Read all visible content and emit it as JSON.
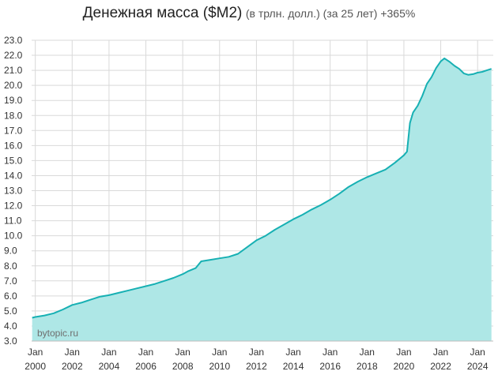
{
  "title": {
    "main": "Денежная масса ($M2)",
    "sub": "(в трлн. долл.) (за 25 лет) +365%"
  },
  "watermark": "bytopic.ru",
  "colors": {
    "line": "#17b0b3",
    "fill": "#aee7e6",
    "grid": "#d9d9d9"
  },
  "chart_data": {
    "type": "area",
    "title": "Денежная масса ($M2) (в трлн. долл.) (за 25 лет) +365%",
    "xlabel": "",
    "ylabel": "",
    "ylim": [
      3.0,
      23.0
    ],
    "yticks": [
      "23.0",
      "22.0",
      "21.0",
      "20.0",
      "19.0",
      "18.0",
      "17.0",
      "16.0",
      "15.0",
      "14.0",
      "13.0",
      "12.0",
      "11.0",
      "10.0",
      "9.0",
      "8.0",
      "7.0",
      "6.0",
      "5.0",
      "4.0",
      "3.0"
    ],
    "xlim": [
      1999.8,
      2024.85
    ],
    "xticks": [
      {
        "year": 2000,
        "line1": "Jan",
        "line2": "2000"
      },
      {
        "year": 2002,
        "line1": "Jan",
        "line2": "2002"
      },
      {
        "year": 2004,
        "line1": "Jan",
        "line2": "2004"
      },
      {
        "year": 2006,
        "line1": "Jan",
        "line2": "2006"
      },
      {
        "year": 2008,
        "line1": "Jan",
        "line2": "2008"
      },
      {
        "year": 2010,
        "line1": "Jan",
        "line2": "2010"
      },
      {
        "year": 2012,
        "line1": "Jan",
        "line2": "2012"
      },
      {
        "year": 2014,
        "line1": "Jan",
        "line2": "2014"
      },
      {
        "year": 2016,
        "line1": "Jan",
        "line2": "2016"
      },
      {
        "year": 2018,
        "line1": "Jan",
        "line2": "2018"
      },
      {
        "year": 2020,
        "line1": "Jan",
        "line2": "2020"
      },
      {
        "year": 2022,
        "line1": "Jan",
        "line2": "2022"
      },
      {
        "year": 2024,
        "line1": "Jan",
        "line2": "2024"
      }
    ],
    "grid": true,
    "series": [
      {
        "points": [
          [
            1999.83,
            4.55
          ],
          [
            2000.0,
            4.6
          ],
          [
            2000.5,
            4.7
          ],
          [
            2001.0,
            4.85
          ],
          [
            2001.5,
            5.1
          ],
          [
            2002.0,
            5.4
          ],
          [
            2002.5,
            5.55
          ],
          [
            2003.0,
            5.75
          ],
          [
            2003.5,
            5.95
          ],
          [
            2004.0,
            6.05
          ],
          [
            2004.5,
            6.2
          ],
          [
            2005.0,
            6.35
          ],
          [
            2005.5,
            6.5
          ],
          [
            2006.0,
            6.65
          ],
          [
            2006.5,
            6.8
          ],
          [
            2007.0,
            7.0
          ],
          [
            2007.5,
            7.2
          ],
          [
            2008.0,
            7.45
          ],
          [
            2008.3,
            7.65
          ],
          [
            2008.7,
            7.85
          ],
          [
            2009.0,
            8.3
          ],
          [
            2009.5,
            8.4
          ],
          [
            2010.0,
            8.5
          ],
          [
            2010.5,
            8.6
          ],
          [
            2011.0,
            8.8
          ],
          [
            2011.5,
            9.25
          ],
          [
            2012.0,
            9.7
          ],
          [
            2012.5,
            10.0
          ],
          [
            2013.0,
            10.4
          ],
          [
            2013.5,
            10.75
          ],
          [
            2014.0,
            11.1
          ],
          [
            2014.5,
            11.4
          ],
          [
            2015.0,
            11.75
          ],
          [
            2015.5,
            12.05
          ],
          [
            2016.0,
            12.4
          ],
          [
            2016.5,
            12.8
          ],
          [
            2017.0,
            13.25
          ],
          [
            2017.5,
            13.6
          ],
          [
            2018.0,
            13.9
          ],
          [
            2018.5,
            14.15
          ],
          [
            2019.0,
            14.4
          ],
          [
            2019.5,
            14.85
          ],
          [
            2020.0,
            15.35
          ],
          [
            2020.17,
            15.6
          ],
          [
            2020.33,
            17.5
          ],
          [
            2020.5,
            18.2
          ],
          [
            2020.75,
            18.65
          ],
          [
            2021.0,
            19.3
          ],
          [
            2021.25,
            20.1
          ],
          [
            2021.5,
            20.55
          ],
          [
            2021.75,
            21.15
          ],
          [
            2022.0,
            21.6
          ],
          [
            2022.2,
            21.8
          ],
          [
            2022.5,
            21.55
          ],
          [
            2022.75,
            21.3
          ],
          [
            2023.0,
            21.1
          ],
          [
            2023.25,
            20.8
          ],
          [
            2023.5,
            20.7
          ],
          [
            2023.75,
            20.75
          ],
          [
            2024.0,
            20.85
          ],
          [
            2024.25,
            20.9
          ],
          [
            2024.5,
            21.0
          ],
          [
            2024.75,
            21.1
          ]
        ]
      }
    ]
  }
}
